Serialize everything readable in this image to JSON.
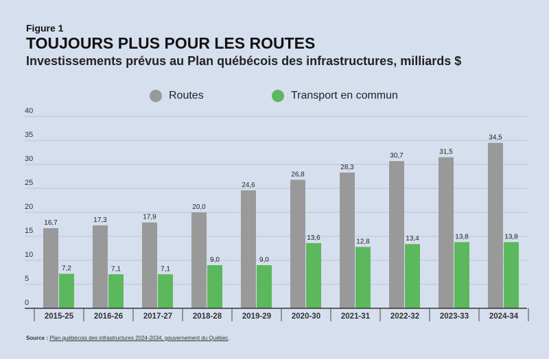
{
  "figure_label": "Figure 1",
  "title": "TOUJOURS PLUS POUR LES ROUTES",
  "subtitle": "Investissements prévus au Plan québécois des infrastructures, milliards $",
  "source_label": "Source :",
  "source_link": "Plan québécois des infrastructures 2024-2034, gouvernement du Québec",
  "colors": {
    "routes": "#999999",
    "transport": "#5cb85c"
  },
  "chart_data": {
    "type": "bar",
    "categories": [
      "2015-25",
      "2016-26",
      "2017-27",
      "2018-28",
      "2019-29",
      "2020-30",
      "2021-31",
      "2022-32",
      "2023-33",
      "2024-34"
    ],
    "series": [
      {
        "name": "Routes",
        "values": [
          16.7,
          17.3,
          17.9,
          20.0,
          24.6,
          26.8,
          28.3,
          30.7,
          31.5,
          34.5
        ],
        "labels": [
          "16,7",
          "17,3",
          "17,9",
          "20,0",
          "24,6",
          "26,8",
          "28,3",
          "30,7",
          "31,5",
          "34,5"
        ]
      },
      {
        "name": "Transport en commun",
        "values": [
          7.2,
          7.1,
          7.1,
          9.0,
          9.0,
          13.6,
          12.8,
          13.4,
          13.8,
          13.8
        ],
        "labels": [
          "7,2",
          "7,1",
          "7,1",
          "9,0",
          "9,0",
          "13,6",
          "12,8",
          "13,4",
          "13,8",
          "13,8"
        ]
      }
    ],
    "yticks": [
      "0",
      "5",
      "10",
      "15",
      "20",
      "25",
      "30",
      "35",
      "40"
    ],
    "ylim": [
      0,
      40
    ],
    "grid": true,
    "legend_position": "top"
  }
}
